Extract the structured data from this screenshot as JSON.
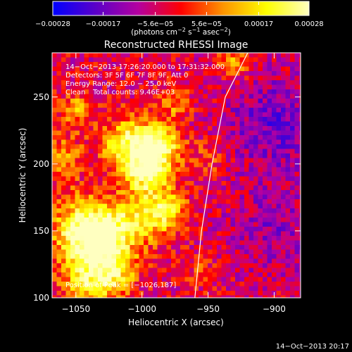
{
  "chart_data": {
    "type": "heatmap",
    "title": "Reconstructed RHESSI Image",
    "xlabel": "Heliocentric X (arcsec)",
    "ylabel": "Heliocentric Y (arcsec)",
    "xlim": [
      -1068,
      -880
    ],
    "ylim": [
      100,
      283
    ],
    "xticks": [
      -1050,
      -1000,
      -950,
      -900
    ],
    "xtick_labels": [
      "−1050",
      "−1000",
      "−950",
      "−900"
    ],
    "yticks": [
      100,
      150,
      200,
      250
    ],
    "ytick_labels": [
      "100",
      "150",
      "200",
      "250"
    ],
    "colorbar": {
      "range": [
        -0.00028,
        0.00028
      ],
      "ticks": [
        -0.00028,
        -0.00017,
        -5.6e-05,
        5.6e-05,
        0.00017,
        0.00028
      ],
      "tick_labels": [
        "−0.00028",
        "−0.00017",
        "−5.6e−05",
        "5.6e−05",
        "0.00017",
        "0.00028"
      ],
      "units_prefix": "(photons cm",
      "units_exp1": "−2",
      "units_mid": " s",
      "units_exp2": "−1",
      "units_mid2": " asec",
      "units_exp3": "−2",
      "units_suffix": ")",
      "colormap": [
        "#0000ff",
        "#5a00c8",
        "#b400a0",
        "#ff0000",
        "#ff9600",
        "#ffff00",
        "#ffffc0"
      ]
    },
    "annotations": {
      "line1": "14−Oct−2013 17:26:20.000 to 17:31:32.000",
      "line2": "Detectors: 3F 5F 6F 7F 8F 9F, Att 0",
      "line3": "Energy Range: 12.0 − 25.0 keV",
      "line4_label": "Clean",
      "line4_counts": "Total counts: 9.46E+03",
      "peak": "Position of Peak = [−1026,187]"
    },
    "peak_position": [
      -1026,
      187
    ],
    "limb_curve": [
      [
        -960,
        100
      ],
      [
        -955,
        150
      ],
      [
        -947,
        200
      ],
      [
        -937,
        250
      ],
      [
        -920,
        283
      ]
    ],
    "blobs": [
      {
        "x": -1045,
        "y": 150,
        "amp": 0.00026,
        "sigma": 18
      },
      {
        "x": -1030,
        "y": 145,
        "amp": 0.00025,
        "sigma": 14
      },
      {
        "x": -1010,
        "y": 215,
        "amp": 0.00026,
        "sigma": 14
      },
      {
        "x": -995,
        "y": 195,
        "amp": 0.00027,
        "sigma": 13
      },
      {
        "x": -985,
        "y": 215,
        "amp": 0.00024,
        "sigma": 10
      },
      {
        "x": -1000,
        "y": 160,
        "amp": 0.0002,
        "sigma": 14
      },
      {
        "x": -980,
        "y": 165,
        "amp": 0.00018,
        "sigma": 10
      },
      {
        "x": -1040,
        "y": 110,
        "amp": 0.0002,
        "sigma": 14
      },
      {
        "x": -1020,
        "y": 120,
        "amp": 0.00018,
        "sigma": 12
      },
      {
        "x": -1060,
        "y": 205,
        "amp": 0.00016,
        "sigma": 10
      },
      {
        "x": -1050,
        "y": 240,
        "amp": 0.00014,
        "sigma": 10
      },
      {
        "x": -975,
        "y": 245,
        "amp": 0.00012,
        "sigma": 9
      },
      {
        "x": -930,
        "y": 275,
        "amp": 0.00014,
        "sigma": 8
      },
      {
        "x": -950,
        "y": 205,
        "amp": 8e-05,
        "sigma": 10
      },
      {
        "x": -955,
        "y": 120,
        "amp": 6e-05,
        "sigma": 10
      },
      {
        "x": -900,
        "y": 230,
        "amp": -0.00012,
        "sigma": 25
      },
      {
        "x": -900,
        "y": 150,
        "amp": -8e-05,
        "sigma": 25
      }
    ],
    "noise_amplitude": 8e-05,
    "timestamp": "14−Oct−2013 20:17"
  }
}
